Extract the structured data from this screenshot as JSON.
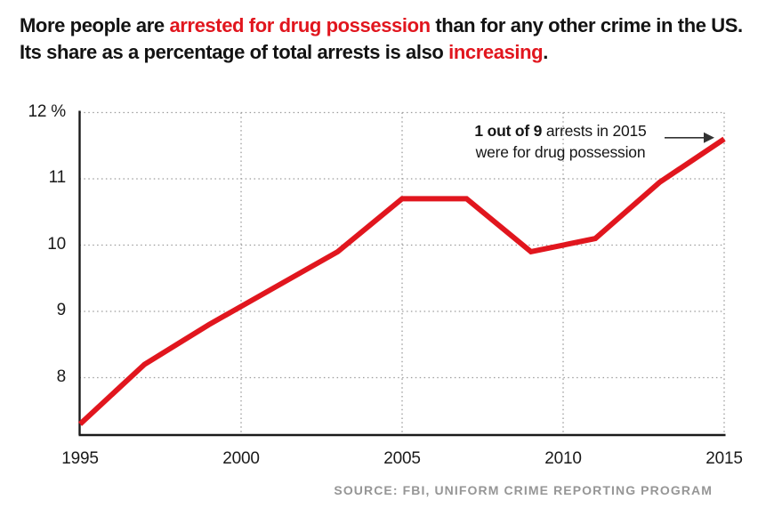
{
  "colors": {
    "accent_red": "#e1161e",
    "text_dark": "#131313",
    "grid_gray": "#9c9c9c",
    "axis_black": "#1a1a1a",
    "source_gray": "#969696",
    "arrow_dark": "#333333"
  },
  "title": {
    "line1": [
      {
        "text": "More people are "
      },
      {
        "text": "arrested for drug possession",
        "highlight": true
      },
      {
        "text": " than for any other crime in the US."
      }
    ],
    "line2": [
      {
        "text": "Its share as a percentage of total arrests is also "
      },
      {
        "text": "increasing",
        "highlight": true
      },
      {
        "text": "."
      }
    ]
  },
  "annotation": {
    "line1_bold": "1 out of 9",
    "line1_rest": " arrests in 2015",
    "line2": "were for drug possession"
  },
  "source": "SOURCE: FBI, UNIFORM CRIME REPORTING PROGRAM",
  "chart_data": {
    "type": "line",
    "x": [
      1995,
      1997,
      1999,
      2001,
      2003,
      2005,
      2007,
      2009,
      2011,
      2013,
      2015
    ],
    "values": [
      7.3,
      8.2,
      8.8,
      9.35,
      9.9,
      10.7,
      10.7,
      9.9,
      10.1,
      10.95,
      11.6
    ],
    "xlim": [
      1995,
      2015
    ],
    "ylim": [
      7.1,
      12
    ],
    "y_ticks": [
      {
        "value": 12,
        "label": "12 %"
      },
      {
        "value": 11,
        "label": "11"
      },
      {
        "value": 10,
        "label": "10"
      },
      {
        "value": 9,
        "label": "9"
      },
      {
        "value": 8,
        "label": "8"
      }
    ],
    "x_ticks": [
      {
        "value": 1995,
        "label": "1995"
      },
      {
        "value": 2000,
        "label": "2000"
      },
      {
        "value": 2005,
        "label": "2005"
      },
      {
        "value": 2010,
        "label": "2010"
      },
      {
        "value": 2015,
        "label": "2015"
      }
    ],
    "grid": "dotted",
    "legend": "none",
    "line_color": "#e1161e"
  }
}
